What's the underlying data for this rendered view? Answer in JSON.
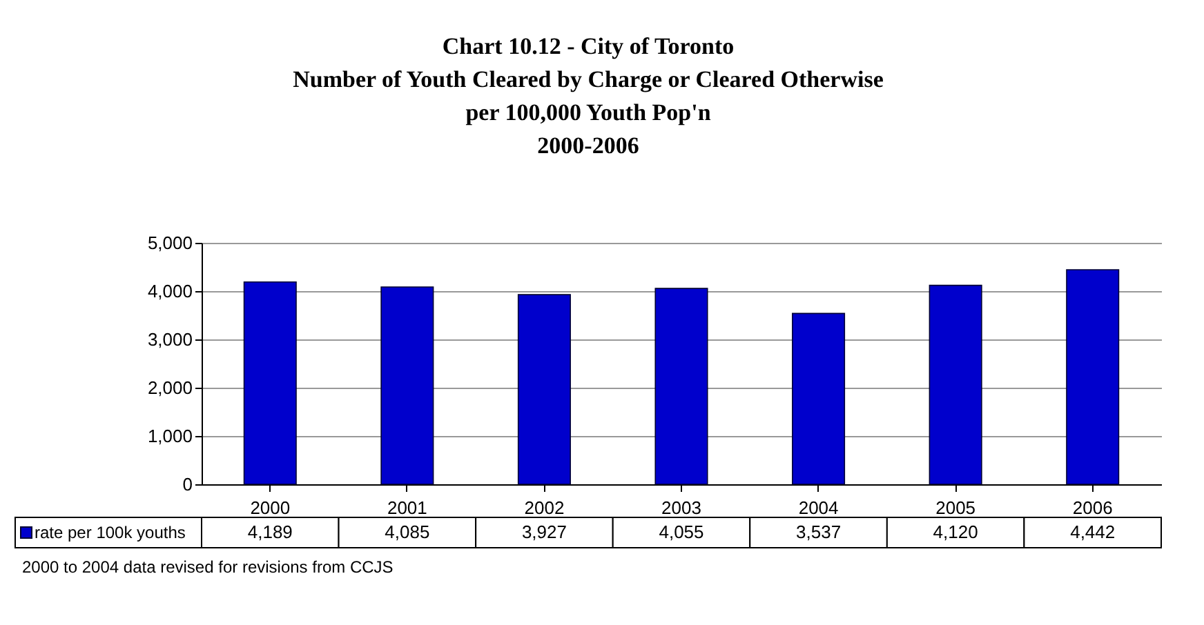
{
  "chart_data": {
    "type": "bar",
    "title": [
      "Chart 10.12 - City of Toronto",
      "Number of Youth  Cleared by Charge or Cleared Otherwise",
      "per 100,000 Youth Pop'n",
      "2000-2006"
    ],
    "categories": [
      "2000",
      "2001",
      "2002",
      "2003",
      "2004",
      "2005",
      "2006"
    ],
    "series": [
      {
        "name": "rate per 100k youths",
        "color": "#0000cc",
        "values": [
          4189,
          4085,
          3927,
          4055,
          3537,
          4120,
          4442
        ],
        "value_labels": [
          "4,189",
          "4,085",
          "3,927",
          "4,055",
          "3,537",
          "4,120",
          "4,442"
        ]
      }
    ],
    "ylim": [
      0,
      5000
    ],
    "yticks": [
      0,
      {
        "value": 1000,
        "label": "1,000"
      },
      {
        "value": 2000,
        "label": "2,000"
      },
      {
        "value": 3000,
        "label": "3,000"
      },
      {
        "value": 4000,
        "label": "4,000"
      },
      {
        "value": 5000,
        "label": "5,000"
      }
    ],
    "grid": "y",
    "legend": "bottom",
    "annotations": [
      "2000 to 2004 data revised for revisions from CCJS"
    ]
  }
}
